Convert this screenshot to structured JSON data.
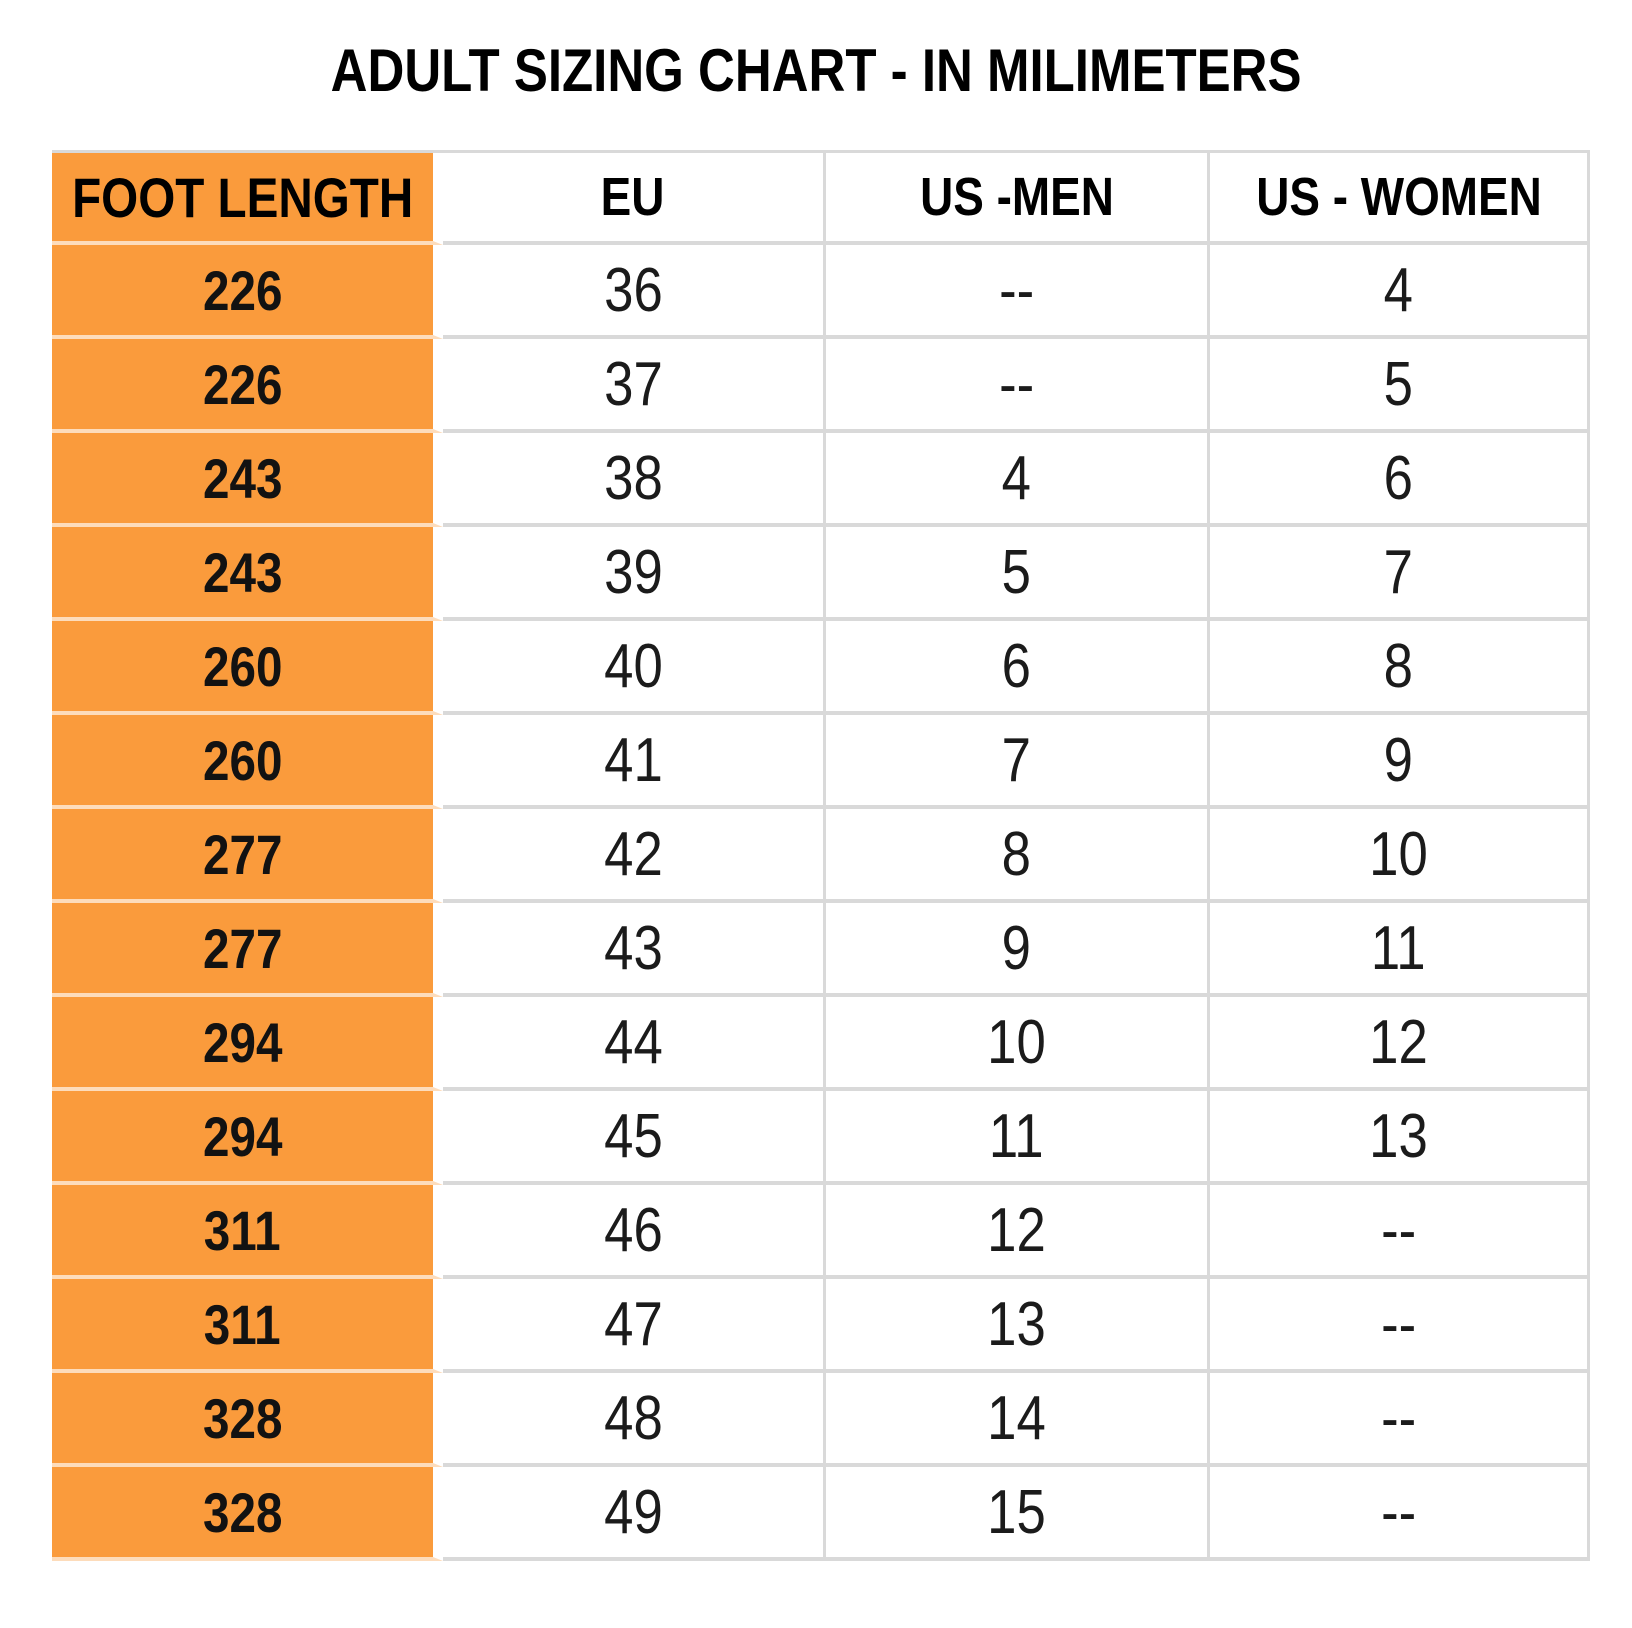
{
  "title": "ADULT SIZING CHART - IN MILIMETERS",
  "colors": {
    "column_header_fill": "#FA9B3C",
    "row_divider": "#D9D9D9",
    "orange_row_divider": "#FDDCBB",
    "text": "#1B1B1B"
  },
  "chart_data": {
    "type": "table",
    "title": "ADULT SIZING CHART - IN MILIMETERS",
    "columns": [
      "FOOT LENGTH",
      "EU",
      "US -MEN",
      "US - WOMEN"
    ],
    "rows": [
      [
        "226",
        "36",
        "--",
        "4"
      ],
      [
        "226",
        "37",
        "--",
        "5"
      ],
      [
        "243",
        "38",
        "4",
        "6"
      ],
      [
        "243",
        "39",
        "5",
        "7"
      ],
      [
        "260",
        "40",
        "6",
        "8"
      ],
      [
        "260",
        "41",
        "7",
        "9"
      ],
      [
        "277",
        "42",
        "8",
        "10"
      ],
      [
        "277",
        "43",
        "9",
        "11"
      ],
      [
        "294",
        "44",
        "10",
        "12"
      ],
      [
        "294",
        "45",
        "11",
        "13"
      ],
      [
        "311",
        "46",
        "12",
        "--"
      ],
      [
        "311",
        "47",
        "13",
        "--"
      ],
      [
        "328",
        "48",
        "14",
        "--"
      ],
      [
        "328",
        "49",
        "15",
        "--"
      ]
    ]
  }
}
